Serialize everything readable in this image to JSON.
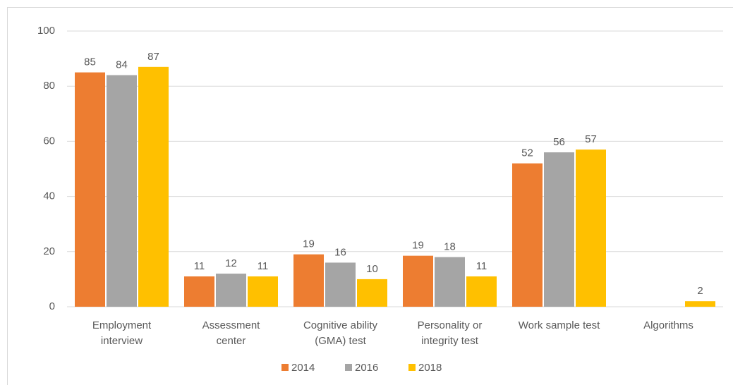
{
  "chart_data": {
    "type": "bar",
    "categories": [
      [
        "Employment",
        "interview"
      ],
      [
        "Assessment",
        "center"
      ],
      [
        "Cognitive ability",
        "(GMA) test"
      ],
      [
        "Personality or",
        "integrity test"
      ],
      [
        "Work sample test"
      ],
      [
        "Algorithms"
      ]
    ],
    "series": [
      {
        "name": "2014",
        "color": "#ed7d31",
        "values": [
          85,
          11,
          19,
          18.5,
          52,
          null
        ],
        "value_labels": [
          "85",
          "11",
          "19",
          "19",
          "52",
          null
        ]
      },
      {
        "name": "2016",
        "color": "#a5a5a5",
        "values": [
          84,
          12,
          16,
          18,
          56,
          null
        ]
      },
      {
        "name": "2018",
        "color": "#ffc000",
        "values": [
          87,
          11,
          10,
          11,
          57,
          2
        ]
      }
    ],
    "ylim": [
      0,
      100
    ],
    "yticks": [
      0,
      20,
      40,
      60,
      80,
      100
    ],
    "grid": true,
    "legend": "bottom"
  }
}
